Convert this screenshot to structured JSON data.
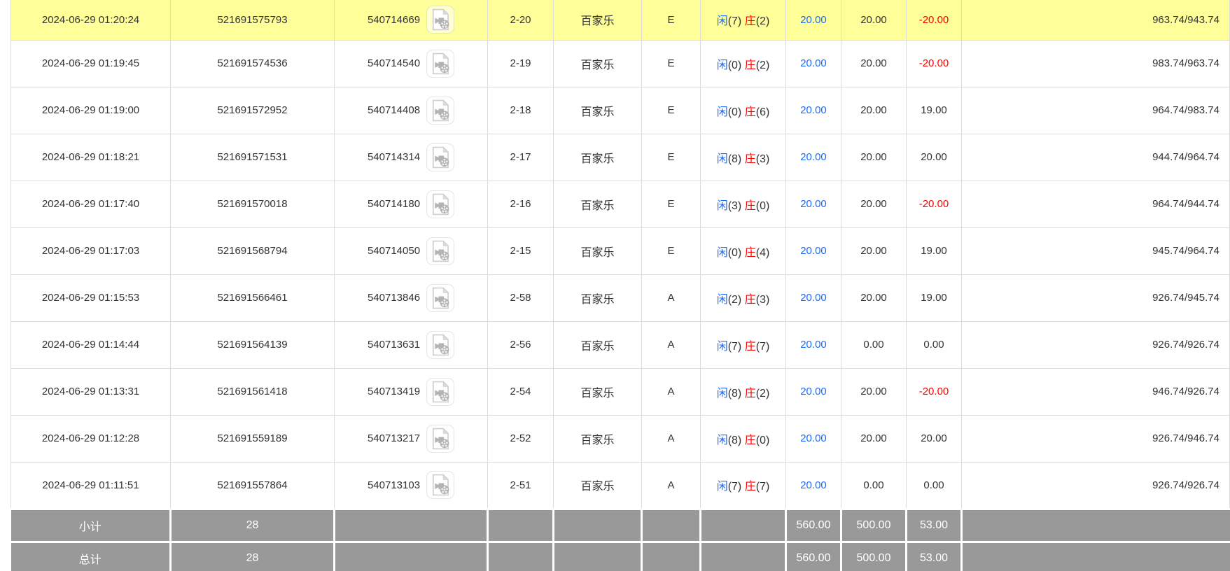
{
  "colors": {
    "row_highlight": "#ffff99",
    "bet_amount_blue": "#1a6bff",
    "player_blue": "#1a6bff",
    "banker_red": "#e60000",
    "loss_red": "#ff0000",
    "summary_bg": "#999999",
    "grid_border": "#dcdcdc",
    "summary_text": "#ffffff"
  },
  "icons": {
    "row_action": "video-replay-icon"
  },
  "table": {
    "rows": [
      {
        "time": "2024-06-29 01:20:24",
        "bet_id": "521691575793",
        "round_id": "540714669",
        "table_round": "2-20",
        "game": "百家乐",
        "table_code": "E",
        "player_label": "闲",
        "player_points": "(7)",
        "banker_label": "庄",
        "banker_points": "(2)",
        "bet": "20.00",
        "valid": "20.00",
        "win_loss": "-20.00",
        "balance": "963.74/943.74",
        "highlight": true
      },
      {
        "time": "2024-06-29 01:19:45",
        "bet_id": "521691574536",
        "round_id": "540714540",
        "table_round": "2-19",
        "game": "百家乐",
        "table_code": "E",
        "player_label": "闲",
        "player_points": "(0)",
        "banker_label": "庄",
        "banker_points": "(2)",
        "bet": "20.00",
        "valid": "20.00",
        "win_loss": "-20.00",
        "balance": "983.74/963.74",
        "highlight": false
      },
      {
        "time": "2024-06-29 01:19:00",
        "bet_id": "521691572952",
        "round_id": "540714408",
        "table_round": "2-18",
        "game": "百家乐",
        "table_code": "E",
        "player_label": "闲",
        "player_points": "(0)",
        "banker_label": "庄",
        "banker_points": "(6)",
        "bet": "20.00",
        "valid": "20.00",
        "win_loss": "19.00",
        "balance": "964.74/983.74",
        "highlight": false
      },
      {
        "time": "2024-06-29 01:18:21",
        "bet_id": "521691571531",
        "round_id": "540714314",
        "table_round": "2-17",
        "game": "百家乐",
        "table_code": "E",
        "player_label": "闲",
        "player_points": "(8)",
        "banker_label": "庄",
        "banker_points": "(3)",
        "bet": "20.00",
        "valid": "20.00",
        "win_loss": "20.00",
        "balance": "944.74/964.74",
        "highlight": false
      },
      {
        "time": "2024-06-29 01:17:40",
        "bet_id": "521691570018",
        "round_id": "540714180",
        "table_round": "2-16",
        "game": "百家乐",
        "table_code": "E",
        "player_label": "闲",
        "player_points": "(3)",
        "banker_label": "庄",
        "banker_points": "(0)",
        "bet": "20.00",
        "valid": "20.00",
        "win_loss": "-20.00",
        "balance": "964.74/944.74",
        "highlight": false
      },
      {
        "time": "2024-06-29 01:17:03",
        "bet_id": "521691568794",
        "round_id": "540714050",
        "table_round": "2-15",
        "game": "百家乐",
        "table_code": "E",
        "player_label": "闲",
        "player_points": "(0)",
        "banker_label": "庄",
        "banker_points": "(4)",
        "bet": "20.00",
        "valid": "20.00",
        "win_loss": "19.00",
        "balance": "945.74/964.74",
        "highlight": false
      },
      {
        "time": "2024-06-29 01:15:53",
        "bet_id": "521691566461",
        "round_id": "540713846",
        "table_round": "2-58",
        "game": "百家乐",
        "table_code": "A",
        "player_label": "闲",
        "player_points": "(2)",
        "banker_label": "庄",
        "banker_points": "(3)",
        "bet": "20.00",
        "valid": "20.00",
        "win_loss": "19.00",
        "balance": "926.74/945.74",
        "highlight": false
      },
      {
        "time": "2024-06-29 01:14:44",
        "bet_id": "521691564139",
        "round_id": "540713631",
        "table_round": "2-56",
        "game": "百家乐",
        "table_code": "A",
        "player_label": "闲",
        "player_points": "(7)",
        "banker_label": "庄",
        "banker_points": "(7)",
        "bet": "20.00",
        "valid": "0.00",
        "win_loss": "0.00",
        "balance": "926.74/926.74",
        "highlight": false
      },
      {
        "time": "2024-06-29 01:13:31",
        "bet_id": "521691561418",
        "round_id": "540713419",
        "table_round": "2-54",
        "game": "百家乐",
        "table_code": "A",
        "player_label": "闲",
        "player_points": "(8)",
        "banker_label": "庄",
        "banker_points": "(2)",
        "bet": "20.00",
        "valid": "20.00",
        "win_loss": "-20.00",
        "balance": "946.74/926.74",
        "highlight": false
      },
      {
        "time": "2024-06-29 01:12:28",
        "bet_id": "521691559189",
        "round_id": "540713217",
        "table_round": "2-52",
        "game": "百家乐",
        "table_code": "A",
        "player_label": "闲",
        "player_points": "(8)",
        "banker_label": "庄",
        "banker_points": "(0)",
        "bet": "20.00",
        "valid": "20.00",
        "win_loss": "20.00",
        "balance": "926.74/946.74",
        "highlight": false
      },
      {
        "time": "2024-06-29 01:11:51",
        "bet_id": "521691557864",
        "round_id": "540713103",
        "table_round": "2-51",
        "game": "百家乐",
        "table_code": "A",
        "player_label": "闲",
        "player_points": "(7)",
        "banker_label": "庄",
        "banker_points": "(7)",
        "bet": "20.00",
        "valid": "0.00",
        "win_loss": "0.00",
        "balance": "926.74/926.74",
        "highlight": false
      }
    ],
    "summary": [
      {
        "label": "小计",
        "count": "28",
        "bet": "560.00",
        "valid": "500.00",
        "win_loss": "53.00"
      },
      {
        "label": "总计",
        "count": "28",
        "bet": "560.00",
        "valid": "500.00",
        "win_loss": "53.00"
      }
    ]
  }
}
